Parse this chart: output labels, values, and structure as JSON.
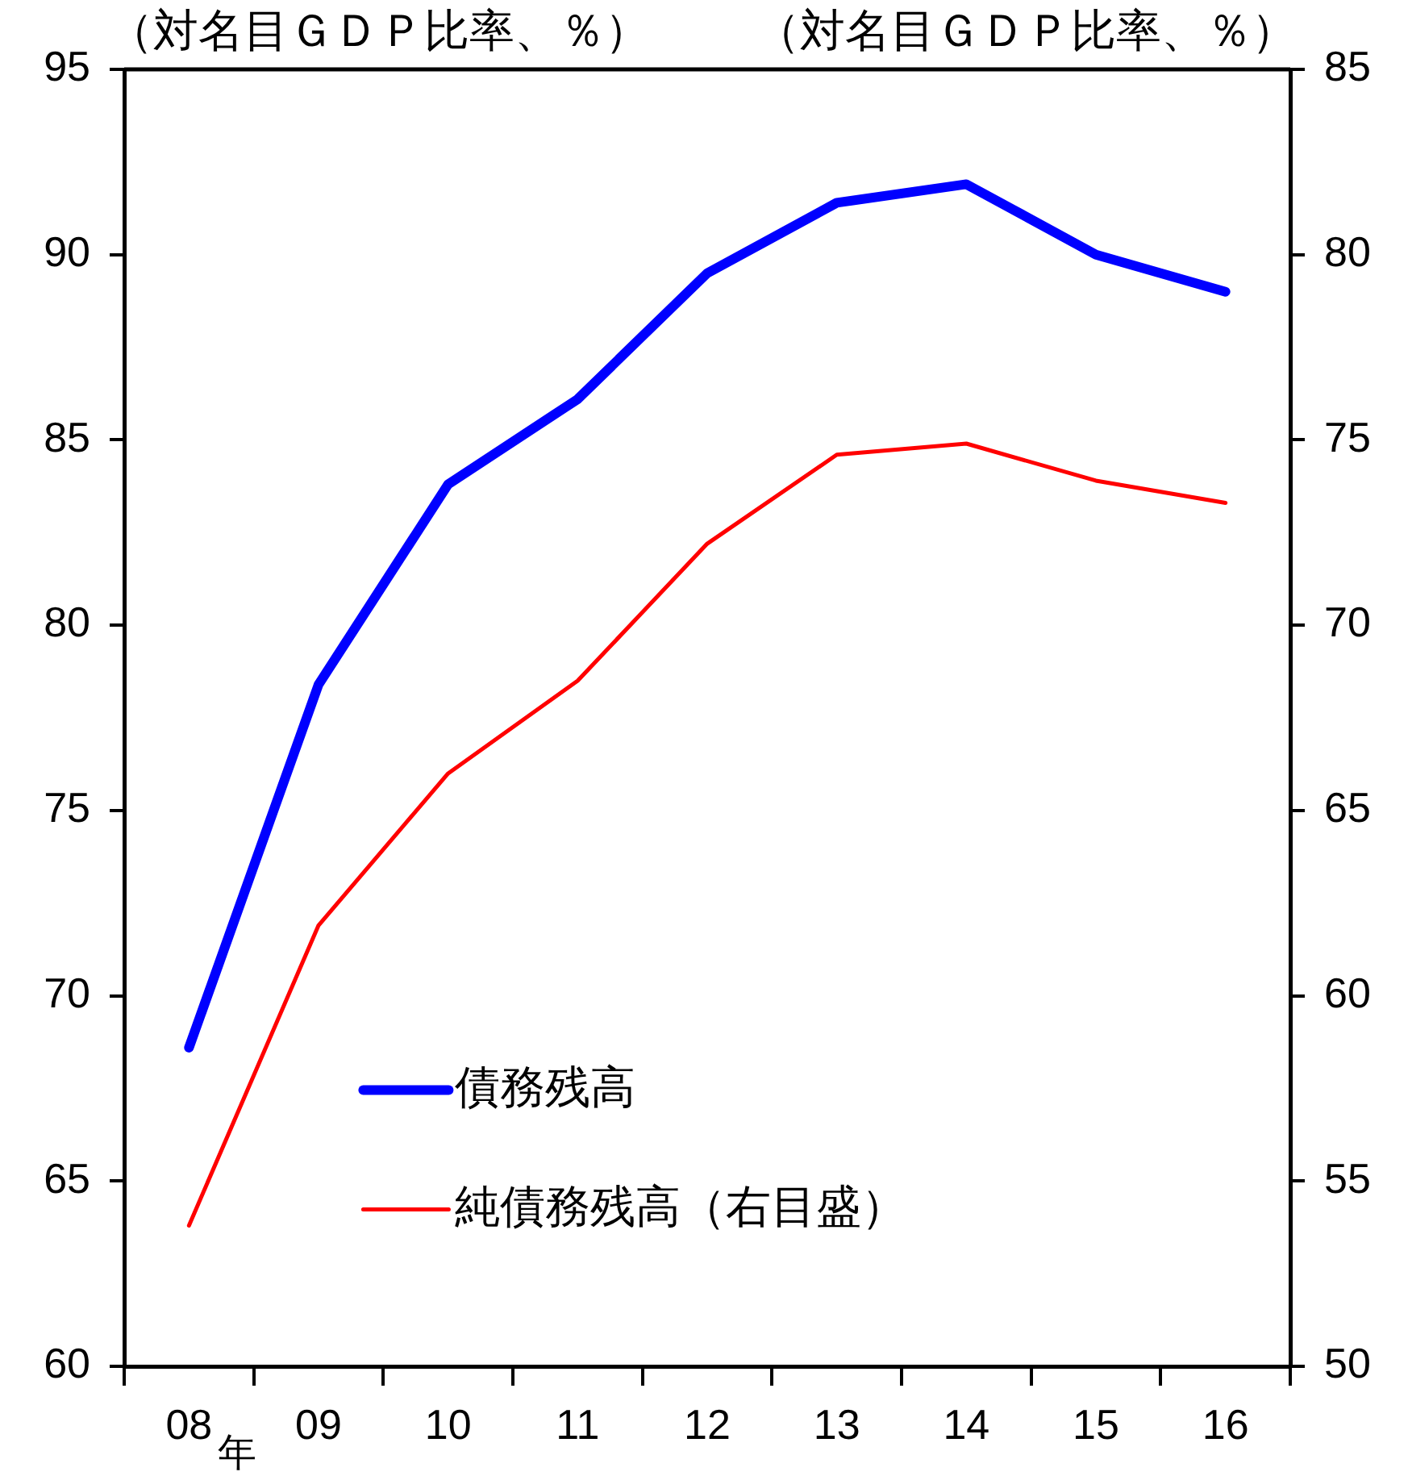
{
  "chart_data": {
    "type": "line",
    "ylabel": "（対名目ＧＤＰ比率、％）",
    "y2label": "（対名目ＧＤＰ比率、％）",
    "xlabel": "年",
    "categories": [
      "08",
      "09",
      "10",
      "11",
      "12",
      "13",
      "14",
      "15",
      "16"
    ],
    "series": [
      {
        "name": "債務残高",
        "color": "#0000ff",
        "values": [
          68.6,
          78.4,
          83.8,
          86.1,
          89.5,
          91.4,
          91.9,
          90.0,
          89.0
        ]
      },
      {
        "name": "純債務残高（右目盛）",
        "color": "#ff0000",
        "axis": "y2",
        "values": [
          53.8,
          61.9,
          66.0,
          68.5,
          72.2,
          74.6,
          74.9,
          73.9,
          73.3
        ]
      }
    ],
    "ylim": [
      60,
      95
    ],
    "yticks": [
      60,
      65,
      70,
      75,
      80,
      85,
      90,
      95
    ],
    "y2lim": [
      50,
      85
    ],
    "y2ticks": [
      50,
      55,
      60,
      65,
      70,
      75,
      80,
      85
    ],
    "grid": false,
    "legend": "bottom left",
    "marker": "none",
    "line_style": "solid"
  }
}
